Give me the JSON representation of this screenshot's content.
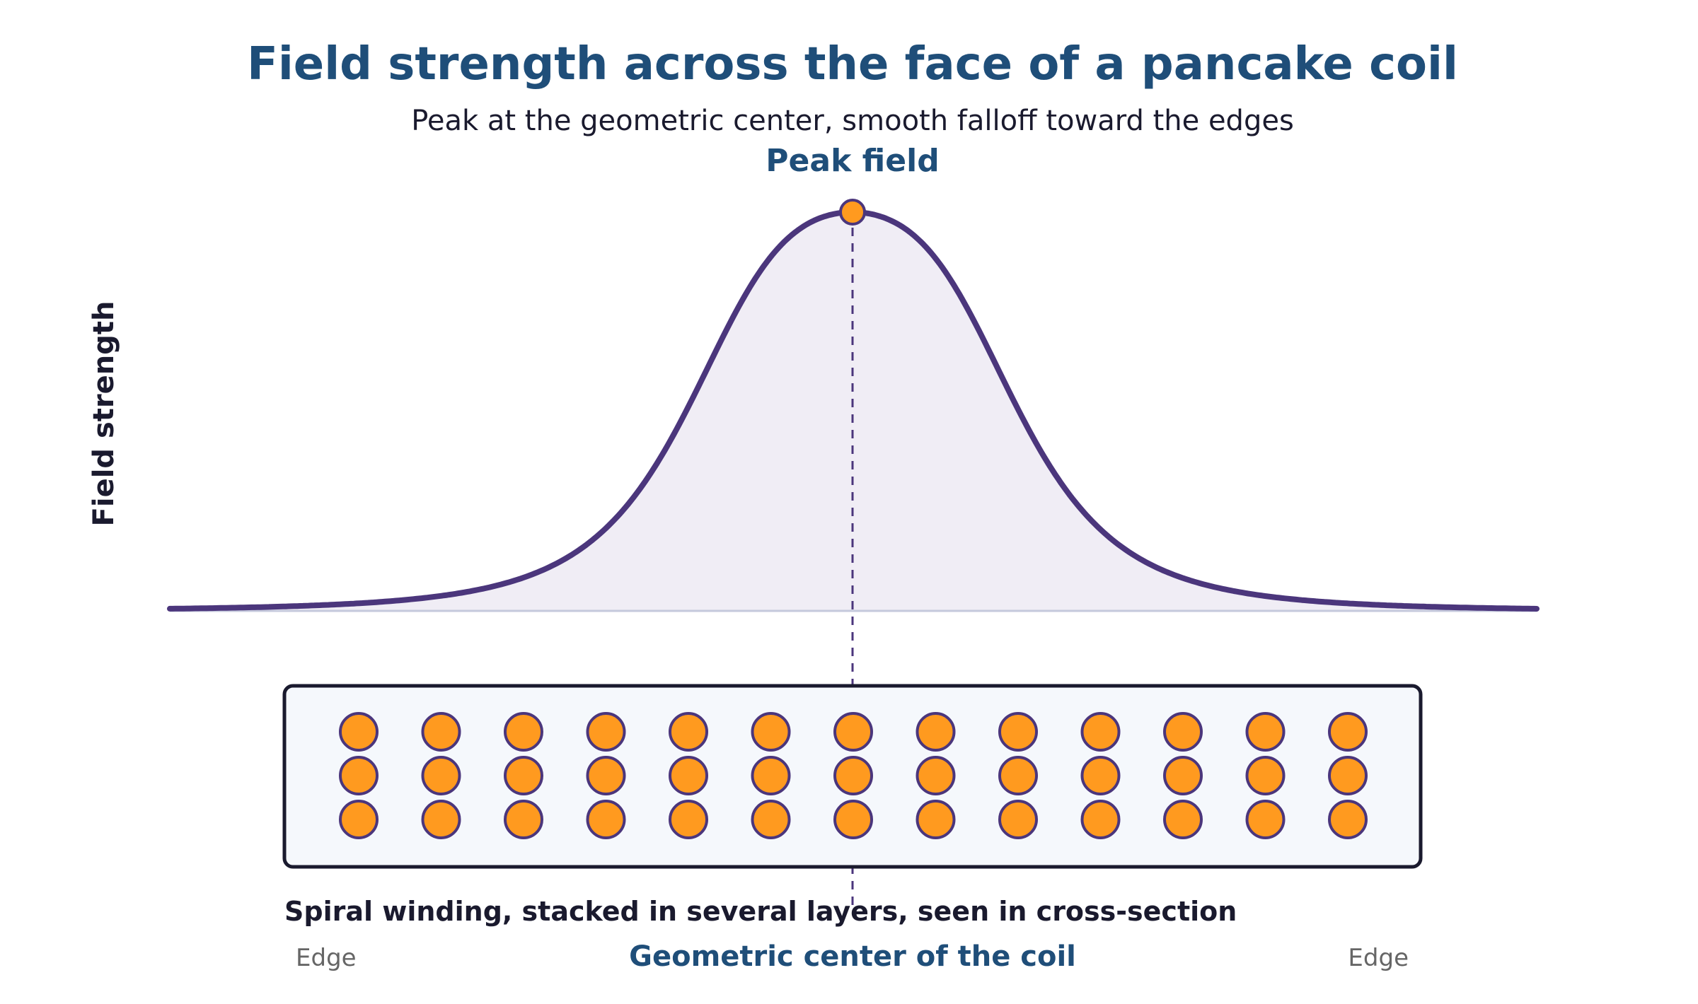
{
  "title": "Field strength across the face of a pancake coil",
  "subtitle": "Peak at the geometric center, smooth falloff toward the edges",
  "peak_label": "Peak field",
  "y_axis_label": "Field strength",
  "caption": "Spiral winding, stacked in several layers, seen in cross-section",
  "center_label": "Geometric center of the coil",
  "edge_left": "Edge",
  "edge_right": "Edge",
  "winding": {
    "columns": 13,
    "layers": 3
  },
  "colors": {
    "title": "#1f4e79",
    "text": "#1a1a2e",
    "edge_text": "#666666",
    "curve": "#4b367c",
    "curve_fill": "#f0edf5",
    "baseline": "#c5c9dc",
    "dot_fill": "#ff9a1f",
    "dot_stroke": "#4b367c",
    "box_fill": "#f5f8fc",
    "box_stroke": "#1a1a2e"
  }
}
